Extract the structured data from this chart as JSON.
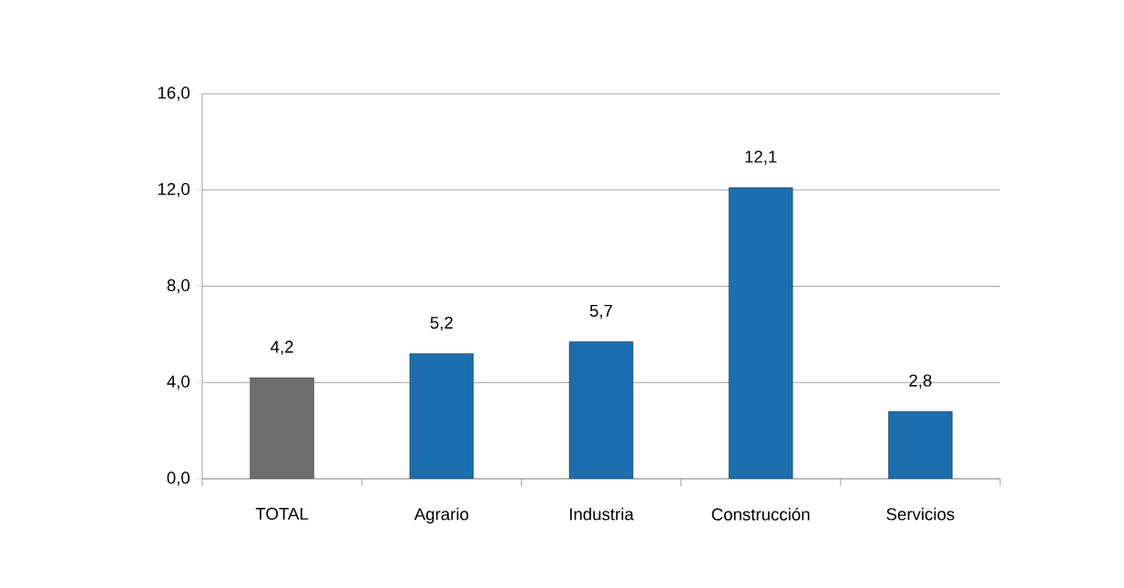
{
  "chart_data": {
    "type": "bar",
    "categories": [
      "TOTAL",
      "Agrario",
      "Industria",
      "Construcción",
      "Servicios"
    ],
    "values": [
      4.2,
      5.2,
      5.7,
      12.1,
      2.8
    ],
    "value_labels": [
      "4,2",
      "5,2",
      "5,7",
      "12,1",
      "2,8"
    ],
    "colors": [
      "#6e6e6e",
      "#1b6fae",
      "#1b6fae",
      "#1b6fae",
      "#1b6fae"
    ],
    "ylim": [
      0,
      16
    ],
    "yticks": [
      {
        "value": 0,
        "label": "0,0"
      },
      {
        "value": 4,
        "label": "4,0"
      },
      {
        "value": 8,
        "label": "8,0"
      },
      {
        "value": 12,
        "label": "12,0"
      },
      {
        "value": 16,
        "label": "16,0"
      }
    ],
    "grid": "y"
  }
}
